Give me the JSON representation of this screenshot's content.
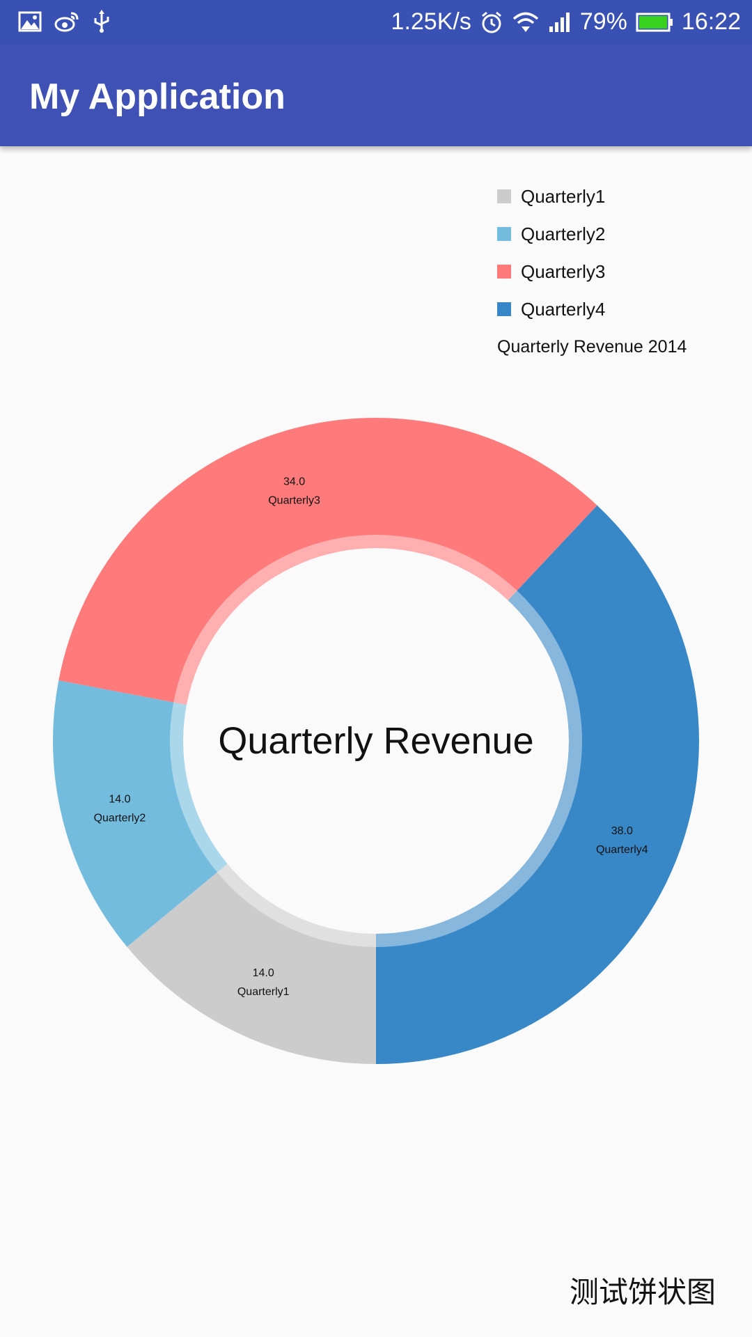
{
  "status_bar": {
    "speed": "1.25K/s",
    "battery": "79%",
    "time": "16:22",
    "battery_color": "#38d11e"
  },
  "app_bar": {
    "title": "My Application",
    "color": "#3f51b5"
  },
  "chart_data": {
    "type": "pie",
    "style": "donut",
    "center_text": "Quarterly Revenue",
    "legend_title": "Quarterly Revenue 2014",
    "legend_position": "top-right",
    "slices": [
      {
        "label": "Quarterly1",
        "value": 14.0,
        "value_text": "14.0",
        "color": "#cccccc"
      },
      {
        "label": "Quarterly2",
        "value": 14.0,
        "value_text": "14.0",
        "color": "#74bcde"
      },
      {
        "label": "Quarterly3",
        "value": 34.0,
        "value_text": "34.0",
        "color": "#ff7b7b"
      },
      {
        "label": "Quarterly4",
        "value": 38.0,
        "value_text": "38.0",
        "color": "#3888c7"
      }
    ]
  },
  "footer": {
    "label": "测试饼状图"
  }
}
